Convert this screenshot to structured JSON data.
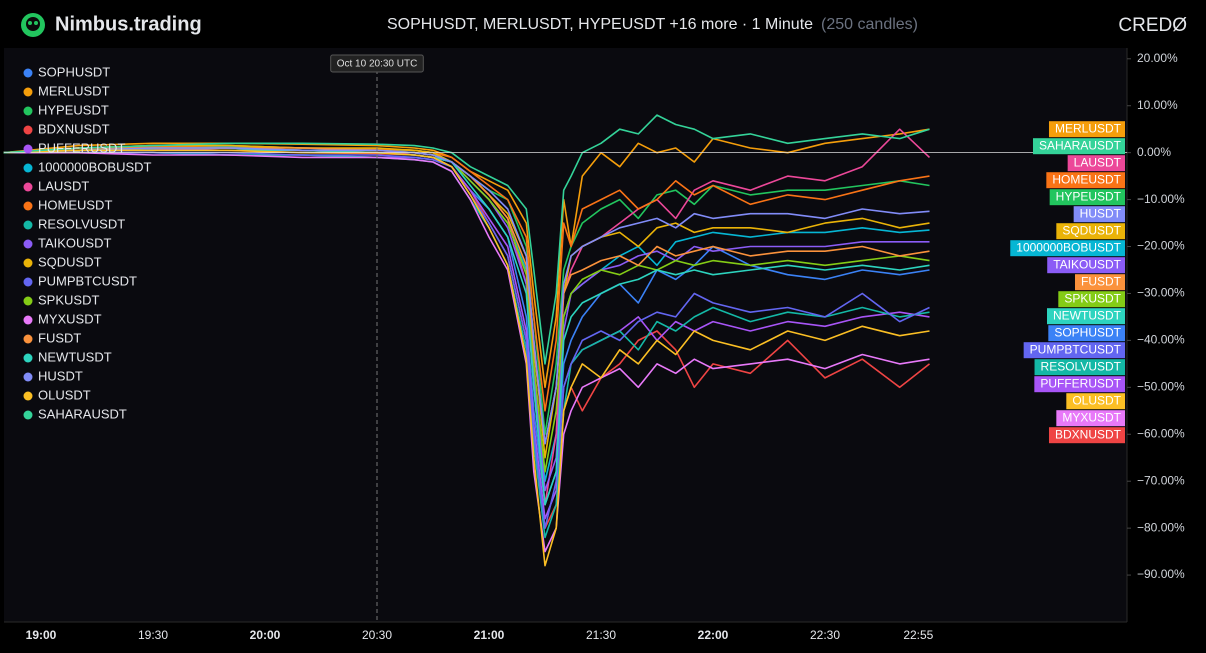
{
  "chart_data": {
    "type": "line",
    "brand": "Nimbus.trading",
    "title": "SOPHUSDT, MERLUSDT, HYPEUSDT +16 more · 1 Minute",
    "subtitle": "(250 candles)",
    "logo_text": "CREDØ",
    "annotation": {
      "x": "20:30",
      "label": "Oct 10 20:30 UTC"
    },
    "baseline": 0,
    "x": [
      "18:50",
      "19:10",
      "19:30",
      "19:50",
      "20:10",
      "20:30",
      "20:40",
      "20:45",
      "20:50",
      "20:55",
      "21:00",
      "21:05",
      "21:10",
      "21:12",
      "21:15",
      "21:18",
      "21:20",
      "21:22",
      "21:25",
      "21:30",
      "21:35",
      "21:40",
      "21:45",
      "21:50",
      "21:55",
      "22:00",
      "22:10",
      "22:20",
      "22:30",
      "22:40",
      "22:50",
      "22:58"
    ],
    "xticks": [
      "19:00",
      "19:30",
      "20:00",
      "20:30",
      "21:00",
      "21:30",
      "22:00",
      "22:30",
      "22:55"
    ],
    "ylim": [
      -100,
      22.3
    ],
    "yticks": [
      {
        "value": 20,
        "label": "20.00%"
      },
      {
        "value": 10,
        "label": "10.00%"
      },
      {
        "value": 0,
        "label": "0.00%"
      },
      {
        "value": -10,
        "label": "−10.00%"
      },
      {
        "value": -20,
        "label": "−20.00%"
      },
      {
        "value": -30,
        "label": "−30.00%"
      },
      {
        "value": -40,
        "label": "−40.00%"
      },
      {
        "value": -50,
        "label": "−50.00%"
      },
      {
        "value": -60,
        "label": "−60.00%"
      },
      {
        "value": -70,
        "label": "−70.00%"
      },
      {
        "value": -80,
        "label": "−80.00%"
      },
      {
        "value": -90,
        "label": "−90.00%"
      }
    ],
    "series": [
      {
        "name": "SOPHUSDT",
        "color": "#3b82f6",
        "values": [
          0,
          0.5,
          0.8,
          1,
          0.5,
          0,
          -0.5,
          -1,
          -3,
          -8,
          -12,
          -18,
          -35,
          -55,
          -75,
          -68,
          -45,
          -40,
          -35,
          -30,
          -28,
          -32,
          -25,
          -27,
          -24,
          -20,
          -24,
          -26,
          -27,
          -25,
          -26,
          -25
        ]
      },
      {
        "name": "MERLUSDT",
        "color": "#f59e0b",
        "values": [
          0,
          1.5,
          2,
          2,
          1.8,
          1.5,
          1,
          0.5,
          -1,
          -4,
          -6,
          -8,
          -15,
          -30,
          -50,
          -35,
          -10,
          -20,
          -5,
          0,
          -3,
          2,
          0,
          1,
          -2,
          3,
          1,
          0,
          2,
          3,
          4,
          5
        ]
      },
      {
        "name": "HYPEUSDT",
        "color": "#22c55e",
        "values": [
          0,
          1,
          1.5,
          1.5,
          1,
          0.8,
          0.5,
          0,
          -2,
          -5,
          -8,
          -10,
          -20,
          -35,
          -60,
          -45,
          -25,
          -20,
          -15,
          -12,
          -10,
          -14,
          -9,
          -8,
          -11,
          -7,
          -9,
          -8,
          -8,
          -7,
          -6,
          -7
        ]
      },
      {
        "name": "BDXNUSDT",
        "color": "#ef4444",
        "values": [
          0,
          0.5,
          0.5,
          0.5,
          0,
          -0.2,
          -0.5,
          -1,
          -3,
          -8,
          -15,
          -22,
          -40,
          -60,
          -80,
          -75,
          -55,
          -50,
          -55,
          -48,
          -45,
          -40,
          -38,
          -42,
          -50,
          -45,
          -47,
          -40,
          -48,
          -44,
          -50,
          -45
        ]
      },
      {
        "name": "PUFFERUSDT",
        "color": "#a855f7",
        "values": [
          0,
          0,
          0,
          -0.5,
          -0.5,
          -1,
          -1,
          -1.5,
          -3,
          -8,
          -14,
          -20,
          -38,
          -58,
          -78,
          -72,
          -50,
          -45,
          -42,
          -40,
          -38,
          -35,
          -40,
          -36,
          -38,
          -36,
          -38,
          -36,
          -37,
          -35,
          -34,
          -35
        ]
      },
      {
        "name": "1000000BOBUSDT",
        "color": "#06b6d4",
        "values": [
          0,
          1,
          1,
          1.2,
          1,
          0.5,
          0.5,
          0,
          -2,
          -6,
          -10,
          -15,
          -25,
          -45,
          -70,
          -60,
          -35,
          -30,
          -28,
          -25,
          -22,
          -20,
          -24,
          -19,
          -18,
          -17,
          -18,
          -17,
          -17,
          -16,
          -17,
          -16.5
        ]
      },
      {
        "name": "LAUSDT",
        "color": "#ec4899",
        "values": [
          0,
          0.5,
          0.5,
          1,
          0.5,
          0,
          0,
          -0.5,
          -2,
          -5,
          -9,
          -14,
          -28,
          -50,
          -75,
          -60,
          -30,
          -25,
          -20,
          -18,
          -15,
          -12,
          -10,
          -14,
          -8,
          -6,
          -8,
          -5,
          -6,
          -3,
          5,
          -1
        ]
      },
      {
        "name": "HOMEUSDT",
        "color": "#f97316",
        "values": [
          0,
          1,
          1.2,
          1.5,
          1,
          0.8,
          0.5,
          0,
          -1,
          -4,
          -7,
          -10,
          -18,
          -35,
          -55,
          -40,
          -15,
          -20,
          -12,
          -10,
          -8,
          -12,
          -10,
          -6,
          -9,
          -7,
          -11,
          -9,
          -10,
          -8,
          -6,
          -5
        ]
      },
      {
        "name": "RESOLVUSDT",
        "color": "#14b8a6",
        "values": [
          0,
          0,
          0,
          -0.5,
          -0.5,
          -1,
          -1.5,
          -2,
          -4,
          -10,
          -16,
          -24,
          -42,
          -62,
          -82,
          -75,
          -55,
          -45,
          -42,
          -40,
          -38,
          -42,
          -36,
          -38,
          -35,
          -33,
          -36,
          -34,
          -35,
          -33,
          -35,
          -34
        ]
      },
      {
        "name": "TAIKOUSDT",
        "color": "#8b5cf6",
        "values": [
          0,
          0.5,
          0.5,
          1,
          0.5,
          0,
          -0.5,
          -1,
          -2,
          -6,
          -10,
          -16,
          -28,
          -48,
          -72,
          -65,
          -38,
          -30,
          -28,
          -25,
          -24,
          -22,
          -21,
          -23,
          -20,
          -21,
          -20,
          -20,
          -20,
          -19,
          -19,
          -19
        ]
      },
      {
        "name": "SQDUSDT",
        "color": "#eab308",
        "values": [
          0,
          1,
          1.5,
          1.5,
          1,
          1,
          0.5,
          0,
          -2,
          -5,
          -9,
          -13,
          -22,
          -40,
          -65,
          -50,
          -30,
          -22,
          -20,
          -18,
          -17,
          -20,
          -16,
          -15,
          -17,
          -16,
          -16,
          -17,
          -15,
          -14,
          -16,
          -15
        ]
      },
      {
        "name": "PUMPBTCUSDT",
        "color": "#6366f1",
        "values": [
          0,
          0,
          0,
          0,
          -0.5,
          -0.5,
          -1,
          -1.5,
          -3,
          -9,
          -15,
          -22,
          -40,
          -60,
          -80,
          -70,
          -50,
          -45,
          -40,
          -38,
          -40,
          -36,
          -34,
          -35,
          -30,
          -32,
          -34,
          -33,
          -35,
          -30,
          -36,
          -33
        ]
      },
      {
        "name": "SPKUSDT",
        "color": "#84cc16",
        "values": [
          0,
          0.5,
          1,
          1,
          0.5,
          0.5,
          0,
          -0.5,
          -2,
          -6,
          -10,
          -15,
          -26,
          -45,
          -68,
          -55,
          -35,
          -30,
          -27,
          -25,
          -26,
          -24,
          -25,
          -23,
          -24,
          -23,
          -24,
          -23,
          -24,
          -23,
          -22,
          -23
        ]
      },
      {
        "name": "MYXUSDT",
        "color": "#e879f9",
        "values": [
          0,
          0,
          -0.5,
          -0.5,
          -1,
          -1,
          -1.5,
          -2,
          -4,
          -10,
          -18,
          -25,
          -45,
          -68,
          -85,
          -80,
          -60,
          -55,
          -50,
          -48,
          -46,
          -50,
          -45,
          -47,
          -44,
          -46,
          -45,
          -44,
          -46,
          -43,
          -45,
          -44
        ]
      },
      {
        "name": "FUSDT",
        "color": "#fb923c",
        "values": [
          0,
          1,
          1,
          1,
          1,
          0.5,
          0,
          -0.5,
          -2,
          -5,
          -9,
          -14,
          -24,
          -42,
          -62,
          -50,
          -30,
          -26,
          -25,
          -23,
          -22,
          -24,
          -20,
          -22,
          -21,
          -20,
          -22,
          -21,
          -21,
          -20,
          -22,
          -21
        ]
      },
      {
        "name": "NEWTUSDT",
        "color": "#2dd4bf",
        "values": [
          0,
          0.5,
          0.5,
          0.5,
          0.5,
          0,
          -0.5,
          -1,
          -2,
          -7,
          -12,
          -18,
          -30,
          -50,
          -75,
          -68,
          -40,
          -35,
          -32,
          -30,
          -28,
          -27,
          -25,
          -26,
          -25,
          -26,
          -25,
          -24,
          -25,
          -24,
          -25,
          -24
        ]
      },
      {
        "name": "HUSDT",
        "color": "#818cf8",
        "values": [
          0,
          0.5,
          1,
          1,
          0.5,
          0.5,
          0,
          -0.5,
          -2,
          -5,
          -8,
          -12,
          -22,
          -40,
          -62,
          -50,
          -28,
          -22,
          -20,
          -18,
          -16,
          -15,
          -14,
          -16,
          -13,
          -14,
          -13,
          -13,
          -14,
          -12,
          -13,
          -12.5
        ]
      },
      {
        "name": "OLUSDT",
        "color": "#fbbf24",
        "values": [
          0,
          0.5,
          0.5,
          0.5,
          0,
          0,
          -0.5,
          -1,
          -3,
          -9,
          -16,
          -24,
          -44,
          -65,
          -88,
          -80,
          -55,
          -50,
          -45,
          -48,
          -42,
          -45,
          -40,
          -43,
          -38,
          -40,
          -42,
          -38,
          -40,
          -37,
          -39,
          -38
        ]
      },
      {
        "name": "SAHARAUSDT",
        "color": "#34d399",
        "values": [
          0,
          1,
          1.5,
          2,
          2,
          1.8,
          1.5,
          1,
          0,
          -3,
          -5,
          -7,
          -12,
          -25,
          -45,
          -30,
          -8,
          -5,
          0,
          2,
          5,
          4,
          8,
          6,
          5,
          3,
          4,
          2,
          3,
          4,
          3,
          5
        ]
      }
    ]
  }
}
